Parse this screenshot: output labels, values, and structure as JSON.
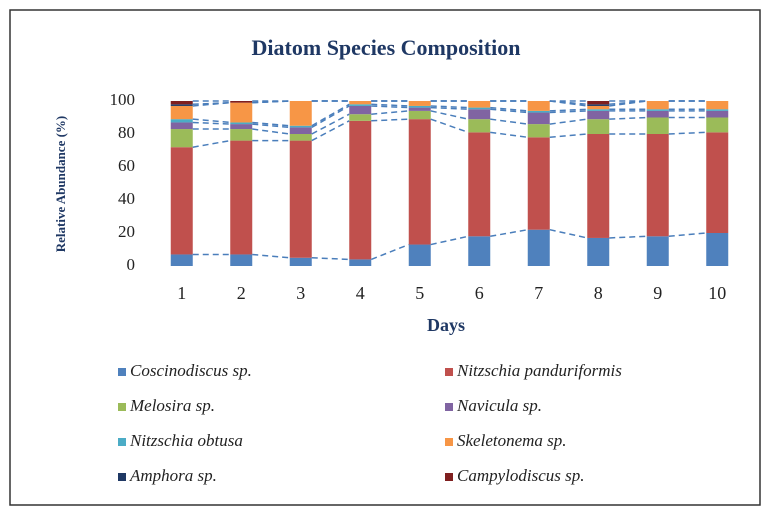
{
  "chart_data": {
    "type": "stacked_bar",
    "title": "Diatom Species Composition",
    "x_label": "Days",
    "y_label": "Relative Abundance (%)",
    "categories": [
      "1",
      "2",
      "3",
      "4",
      "5",
      "6",
      "7",
      "8",
      "9",
      "10"
    ],
    "ylim": [
      0,
      100
    ],
    "yticks": [
      0,
      20,
      40,
      60,
      80,
      100
    ],
    "grid": false,
    "series_lines": true,
    "series": [
      {
        "name": "Coscinodiscus sp.",
        "color": "#4f81bd",
        "values": [
          7,
          7,
          5,
          4,
          13,
          18,
          22,
          17,
          18,
          20
        ]
      },
      {
        "name": "Nitzschia panduriformis",
        "color": "#c0504d",
        "values": [
          65,
          69,
          71,
          84,
          76,
          63,
          56,
          63,
          62,
          61
        ]
      },
      {
        "name": "Melosira sp.",
        "color": "#9bbb59",
        "values": [
          11,
          7,
          4,
          4,
          5,
          8,
          8,
          9,
          10,
          9
        ]
      },
      {
        "name": "Navicula sp.",
        "color": "#8064a2",
        "values": [
          4,
          3,
          4,
          5,
          2,
          6,
          7,
          5,
          4,
          4
        ]
      },
      {
        "name": "Nitzschia obtusa",
        "color": "#4bacc6",
        "values": [
          2,
          1,
          1,
          1,
          1,
          1,
          1,
          1,
          1,
          1
        ]
      },
      {
        "name": "Skeletonema sp.",
        "color": "#f79646",
        "values": [
          8,
          12,
          15,
          2,
          3,
          4,
          6,
          2,
          5,
          5
        ]
      },
      {
        "name": "Amphora sp.",
        "color": "#1f3864",
        "values": [
          1,
          0,
          0,
          0,
          0,
          0,
          0,
          1,
          0,
          0
        ]
      },
      {
        "name": "Campylodiscus sp.",
        "color": "#7f1f1f",
        "values": [
          2,
          1,
          0,
          0,
          0,
          0,
          0,
          2,
          0,
          0
        ]
      }
    ]
  }
}
